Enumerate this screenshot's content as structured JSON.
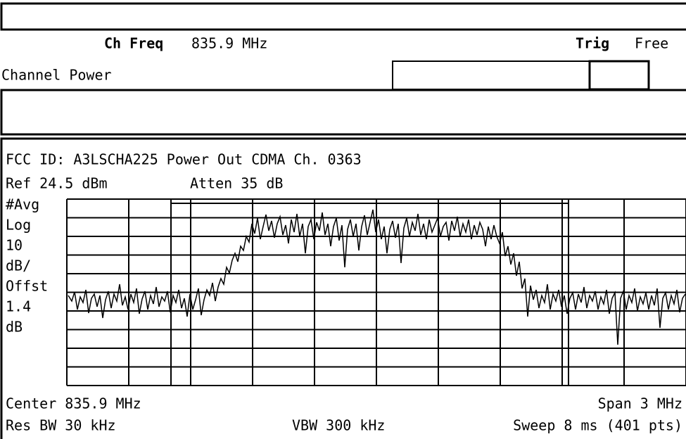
{
  "header": {
    "ch_freq_label": "Ch Freq",
    "ch_freq_value": "835.9 MHz",
    "trig_label": "Trig",
    "trig_value": "Free",
    "mode": "Channel Power"
  },
  "screen": {
    "title": "FCC ID: A3LSCHA225 Power Out CDMA Ch. 0363",
    "ref": "Ref 24.5 dBm",
    "atten": "Atten 35 dB",
    "left_labels": [
      "#Avg",
      "Log",
      "10",
      "dB/",
      "Offst",
      "1.4",
      "dB"
    ],
    "center": "Center 835.9 MHz",
    "span": "Span 3 MHz",
    "res_bw": "Res BW 30 kHz",
    "vbw": "VBW 300 kHz",
    "sweep": "Sweep 8 ms (401 pts)"
  }
}
